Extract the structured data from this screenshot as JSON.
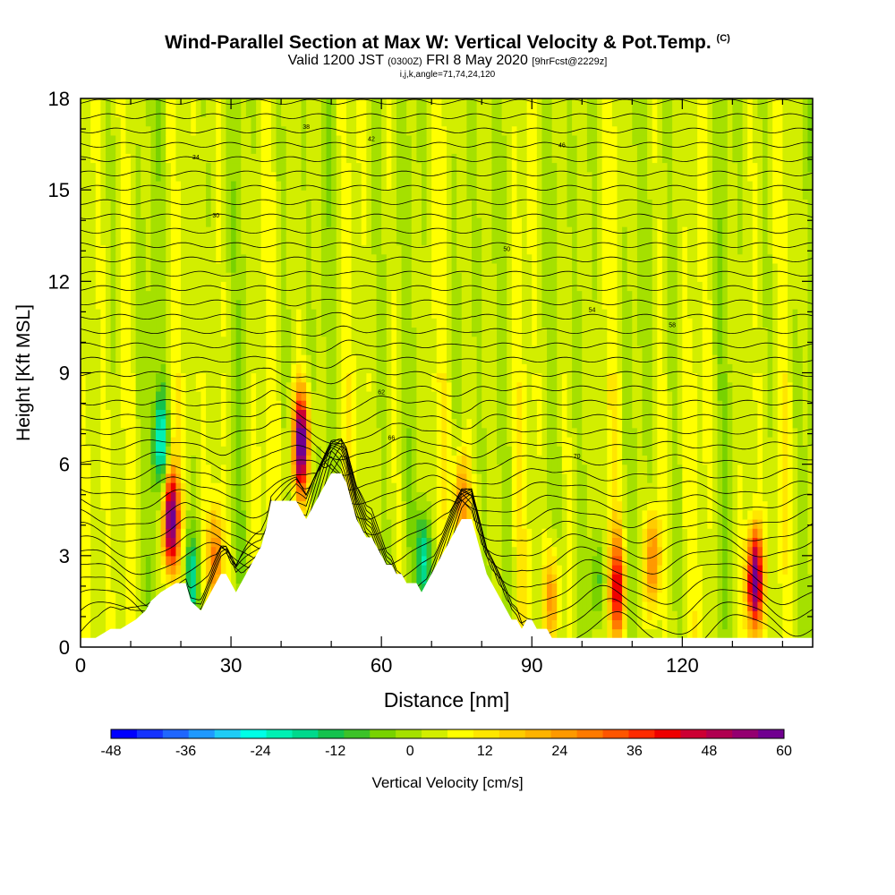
{
  "title": {
    "main": "Wind-Parallel Section at Max W: Vertical Velocity & Pot.Temp.",
    "copyright": "(C)",
    "valid_prefix": "Valid 1200 JST",
    "valid_utc": "(0300Z)",
    "valid_date": "FRI 8 May 2020",
    "forecast": "[9hrFcst@2229z]",
    "indices": "i,j,k,angle=71,74,24,120"
  },
  "chart_data": {
    "type": "heatmap",
    "xlabel": "Distance [nm]",
    "ylabel": "Height [Kft MSL]",
    "xlim": [
      0,
      146
    ],
    "ylim": [
      0,
      18
    ],
    "x_ticks": [
      "0",
      "30",
      "60",
      "90",
      "120"
    ],
    "x_tick_values": [
      0,
      30,
      60,
      90,
      120
    ],
    "y_ticks": [
      "0",
      "3",
      "6",
      "9",
      "12",
      "15",
      "18"
    ],
    "y_tick_values": [
      0,
      3,
      6,
      9,
      12,
      15,
      18
    ],
    "colorbar": {
      "label": "Vertical Velocity [cm/s]",
      "ticks": [
        "-48",
        "-36",
        "-24",
        "-12",
        "0",
        "12",
        "24",
        "36",
        "48",
        "60"
      ],
      "tick_values": [
        -48,
        -36,
        -24,
        -12,
        0,
        12,
        24,
        36,
        48,
        60
      ],
      "min": -48,
      "max": 60,
      "colors": [
        "#0000ff",
        "#1533ff",
        "#1f66ff",
        "#1f99ff",
        "#1fccf5",
        "#00ffe6",
        "#00f0b3",
        "#00d98c",
        "#14c24d",
        "#3cc228",
        "#78d200",
        "#a5e000",
        "#d2ee00",
        "#ffff00",
        "#ffe600",
        "#ffcc00",
        "#ffb300",
        "#ff9900",
        "#ff7a00",
        "#ff5500",
        "#ff2a00",
        "#ee0000",
        "#cc0033",
        "#b00050",
        "#940070",
        "#700090"
      ]
    },
    "terrain_profile": {
      "x": [
        0,
        3,
        6,
        8,
        11,
        13,
        14,
        16,
        19,
        21,
        22,
        24,
        25,
        26,
        27,
        28,
        29,
        30,
        31,
        32,
        33,
        34,
        35,
        36,
        37,
        38,
        39,
        40,
        41,
        42,
        43,
        44,
        45,
        46,
        47,
        48,
        49,
        50,
        51,
        52,
        53,
        54,
        55,
        56,
        57,
        58,
        59,
        60,
        61,
        62,
        63,
        64,
        65,
        66,
        67,
        68,
        69,
        70,
        71,
        72,
        73,
        74,
        75,
        76,
        77,
        78,
        79,
        80,
        81,
        82,
        83,
        84,
        85,
        86,
        87,
        88,
        89,
        90,
        91,
        92,
        93,
        94,
        95,
        96,
        97,
        98,
        99,
        146
      ],
      "height": [
        0.3,
        0.3,
        0.6,
        0.6,
        0.9,
        1.2,
        1.5,
        1.8,
        2.1,
        2.1,
        1.5,
        1.2,
        1.5,
        1.8,
        2.1,
        2.4,
        2.4,
        2.1,
        1.8,
        2.1,
        2.4,
        2.7,
        3.0,
        3.3,
        3.9,
        4.8,
        4.8,
        4.8,
        4.8,
        4.8,
        4.8,
        4.5,
        4.2,
        4.5,
        4.8,
        5.1,
        5.4,
        5.7,
        5.7,
        5.7,
        5.4,
        4.8,
        4.2,
        3.9,
        3.6,
        3.6,
        3.3,
        3.0,
        2.7,
        2.7,
        2.4,
        2.4,
        2.1,
        2.1,
        2.1,
        1.8,
        2.1,
        2.4,
        2.7,
        3.0,
        3.3,
        3.6,
        3.9,
        4.2,
        4.2,
        4.2,
        3.6,
        3.0,
        2.4,
        2.1,
        1.8,
        1.5,
        1.2,
        0.9,
        0.9,
        0.6,
        0.9,
        0.9,
        0.6,
        0.6,
        0.6,
        0.3,
        0.3,
        0.3,
        0.3,
        0.3,
        0.3,
        0.3
      ]
    },
    "updraft_cores": [
      {
        "x": 18,
        "h": 4.2,
        "w": 60
      },
      {
        "x": 44,
        "h": 6.7,
        "w": 60
      },
      {
        "x": 134.5,
        "h": 2.2,
        "w": 60
      },
      {
        "x": 76,
        "h": 4.8,
        "w": 28
      },
      {
        "x": 107,
        "h": 2.0,
        "w": 36
      },
      {
        "x": 114,
        "h": 2.8,
        "w": 28
      },
      {
        "x": 27,
        "h": 3.0,
        "w": 26
      },
      {
        "x": 94,
        "h": 1.6,
        "w": 24
      }
    ],
    "downdraft_cores": [
      {
        "x": 16,
        "h": 6.7,
        "w": -26
      },
      {
        "x": 22,
        "h": 2.2,
        "w": -22
      },
      {
        "x": 68.5,
        "h": 2.9,
        "w": -26
      },
      {
        "x": 103,
        "h": 2.1,
        "w": -14
      }
    ],
    "theta_contour_labels": [
      "30",
      "34",
      "38",
      "42",
      "46",
      "50",
      "54",
      "58",
      "62",
      "66",
      "70"
    ]
  }
}
